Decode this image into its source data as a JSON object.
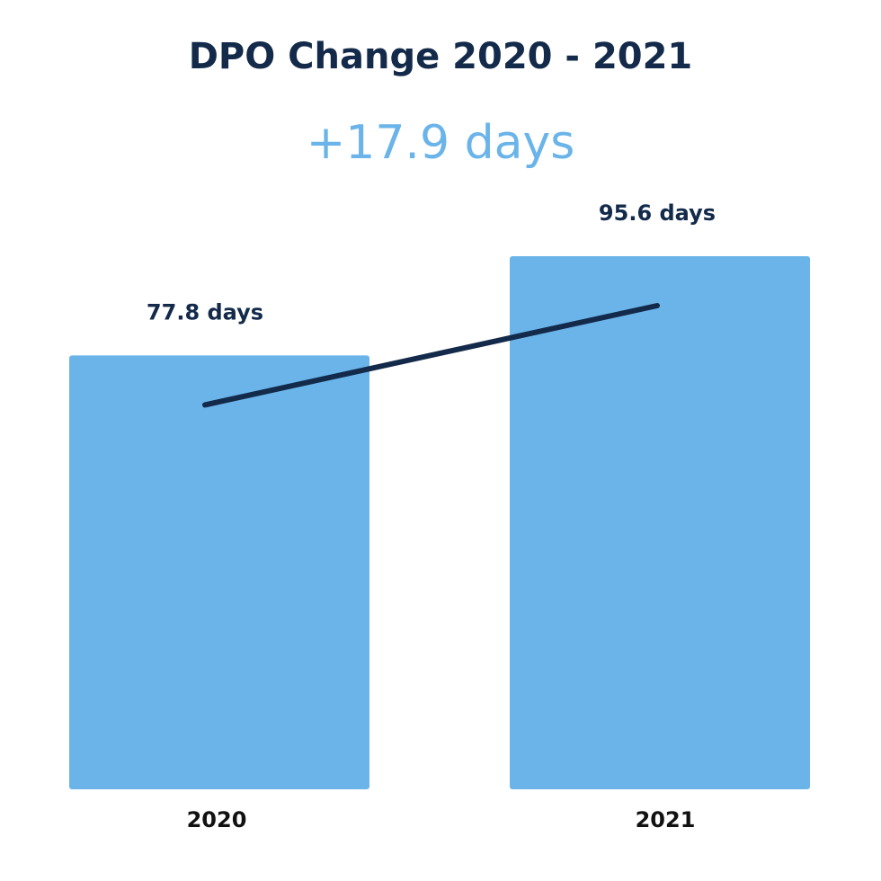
{
  "chart_data": {
    "type": "bar",
    "title": "DPO Change 2020 - 2021",
    "subtitle": "+17.9 days",
    "categories": [
      "2020",
      "2021"
    ],
    "values": [
      77.8,
      95.6
    ],
    "data_labels": [
      "77.8 days",
      "95.6 days"
    ],
    "unit": "days",
    "xlabel": "",
    "ylabel": "",
    "grid": false,
    "trend_line": true,
    "colors": {
      "bar": "#6ab4ea",
      "trend_line": "#132a4a",
      "title": "#132a4a",
      "subtitle": "#6ab4ea",
      "label": "#132a4a"
    }
  }
}
